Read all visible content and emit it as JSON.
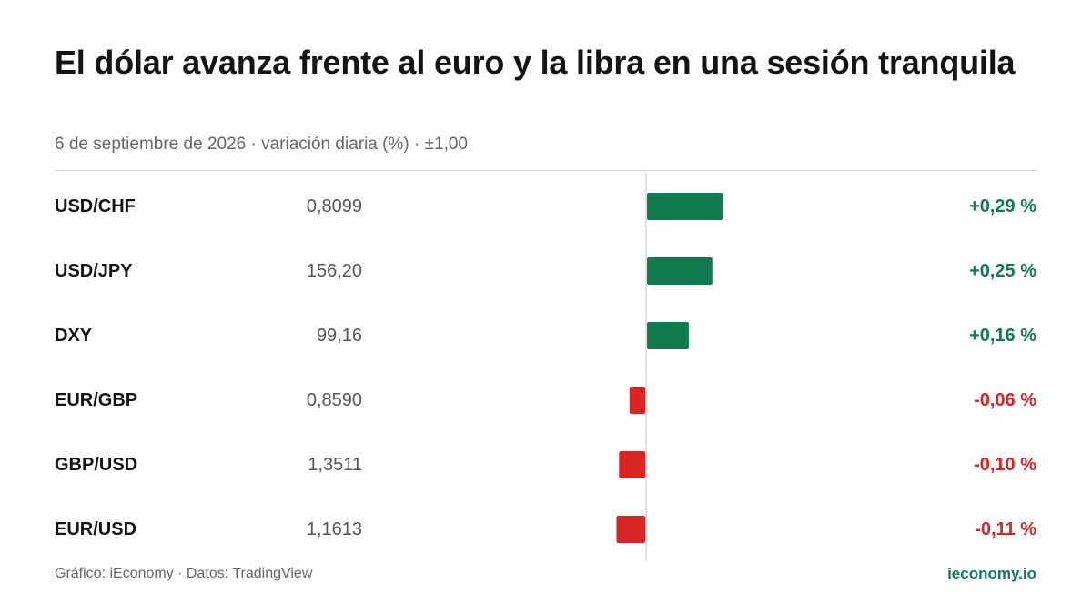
{
  "title": "El dólar avanza frente al euro y la libra en una sesión tranquila",
  "subtitle": "6 de septiembre de 2026 · variación diaria (%) · ±1,00",
  "footer": {
    "credit": "Gráfico: iEconomy · Datos: TradingView",
    "brand": "ieconomy.io"
  },
  "colors": {
    "positive": "#117a4f",
    "negative": "#d92525",
    "axis": "#d9d9d9"
  },
  "chart_data": {
    "type": "bar",
    "orientation": "horizontal",
    "xlim": [
      -1.0,
      1.0
    ],
    "rows": [
      {
        "pair": "USD/CHF",
        "price": "0,8099",
        "change": 0.29,
        "change_label": "+0,29 %"
      },
      {
        "pair": "USD/JPY",
        "price": "156,20",
        "change": 0.25,
        "change_label": "+0,25 %"
      },
      {
        "pair": "DXY",
        "price": "99,16",
        "change": 0.16,
        "change_label": "+0,16 %"
      },
      {
        "pair": "EUR/GBP",
        "price": "0,8590",
        "change": -0.06,
        "change_label": "-0,06 %"
      },
      {
        "pair": "GBP/USD",
        "price": "1,3511",
        "change": -0.1,
        "change_label": "-0,10 %"
      },
      {
        "pair": "EUR/USD",
        "price": "1,1613",
        "change": -0.11,
        "change_label": "-0,11 %"
      }
    ]
  }
}
